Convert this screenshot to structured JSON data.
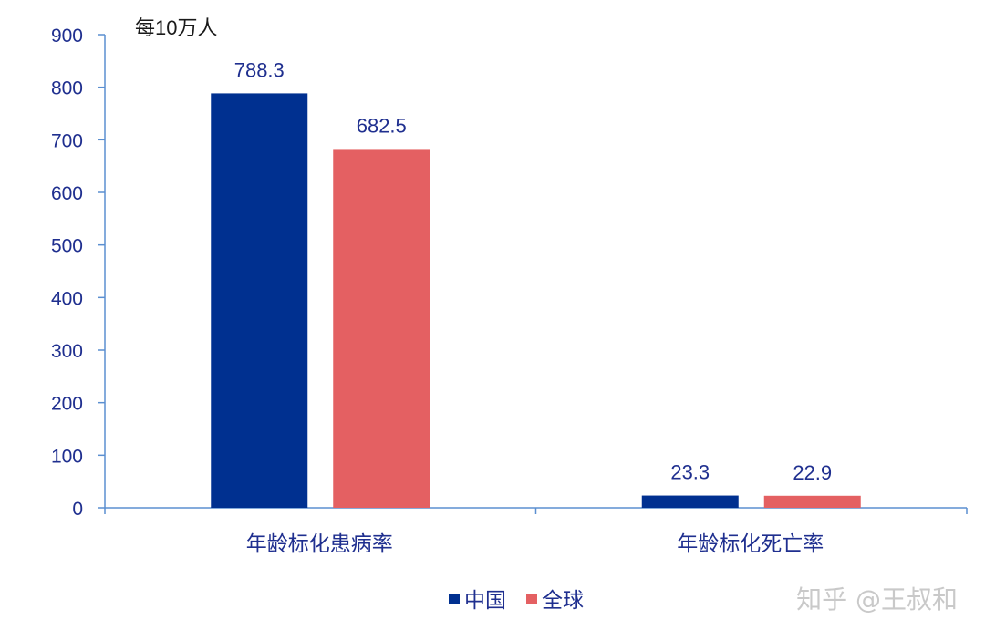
{
  "chart_data": {
    "type": "bar",
    "unit_label": "每10万人",
    "categories": [
      "年龄标化患病率",
      "年龄标化死亡率"
    ],
    "series": [
      {
        "name": "中国",
        "color": "#003090",
        "values": [
          788.3,
          23.3
        ]
      },
      {
        "name": "全球",
        "color": "#E46062",
        "values": [
          682.5,
          22.9
        ]
      }
    ],
    "data_labels": [
      [
        "788.3",
        "23.3"
      ],
      [
        "682.5",
        "22.9"
      ]
    ],
    "ylim": [
      0,
      900
    ],
    "yticks": [
      0,
      100,
      200,
      300,
      400,
      500,
      600,
      700,
      800,
      900
    ],
    "axis_color": "#5b8fd0",
    "grid": false,
    "legend_position": "bottom"
  },
  "watermark": "知乎 @王叔和"
}
